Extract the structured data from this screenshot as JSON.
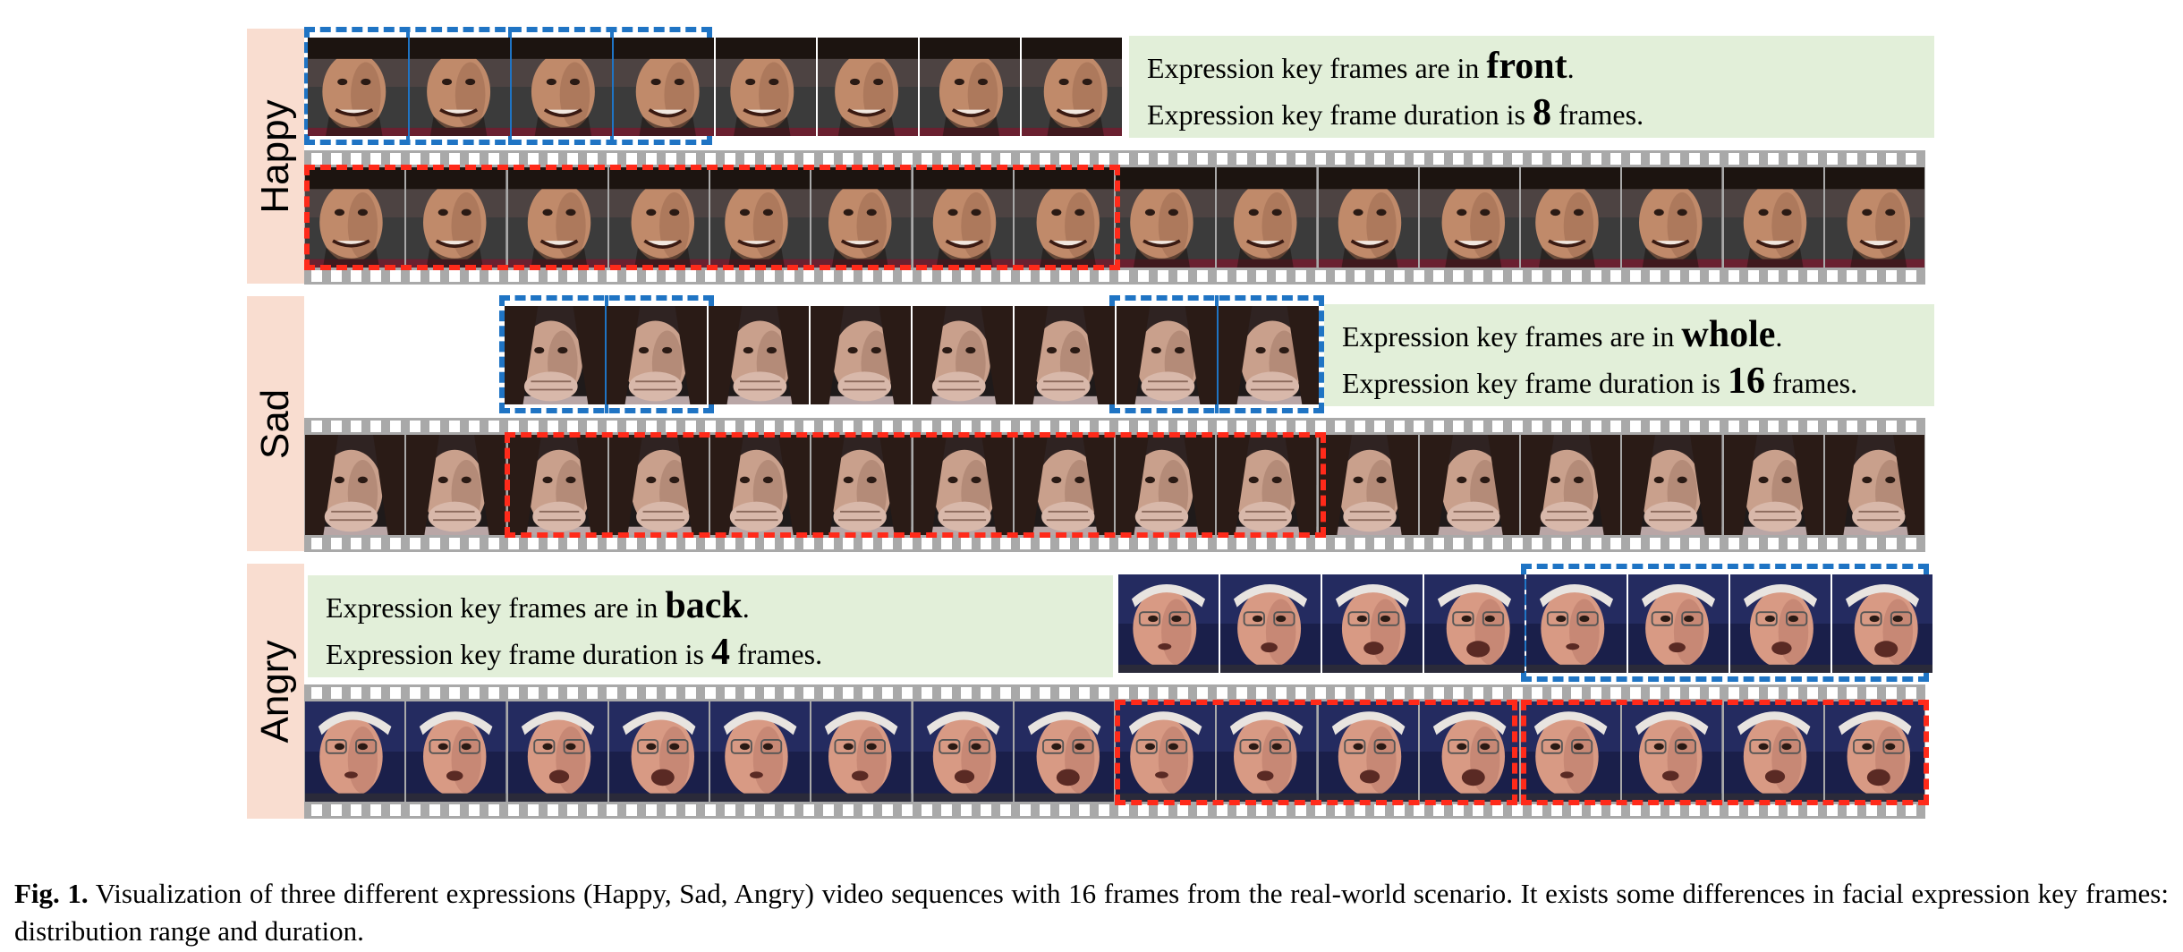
{
  "rows": [
    {
      "label": "Happy",
      "tone": "happy",
      "text_lines": {
        "line1_pre": "Expression key frames are in ",
        "line1_bold": "front",
        "line1_post": ".",
        "line2_pre": "Expression key frame duration is ",
        "line2_bold": "8",
        "line2_post": " frames."
      }
    },
    {
      "label": "Sad",
      "tone": "sad",
      "text_lines": {
        "line1_pre": "Expression key frames are in ",
        "line1_bold": "whole",
        "line1_post": ".",
        "line2_pre": "Expression key frame duration is ",
        "line2_bold": "16",
        "line2_post": " frames."
      }
    },
    {
      "label": "Angry",
      "tone": "angry",
      "text_lines": {
        "line1_pre": "Expression key frames are in ",
        "line1_bold": "back",
        "line1_post": ".",
        "line2_pre": "Expression key frame duration is ",
        "line2_bold": "4",
        "line2_post": " frames."
      }
    }
  ],
  "caption": {
    "prefix": "Fig. 1.",
    "text": " Visualization of three different expressions (Happy, Sad, Angry) video sequences with 16 frames from the real-world scenario. It exists some differences in facial expression key frames: distribution range and duration."
  },
  "colors": {
    "key_frame_box": "#1f74c4",
    "sequence_box": "#ff2a1a",
    "label_band": "#f9ddd0",
    "text_box": "#e2efd9",
    "film": "#a9a9a9"
  },
  "frames_per_sequence": 16,
  "key_frames_shown": 8
}
